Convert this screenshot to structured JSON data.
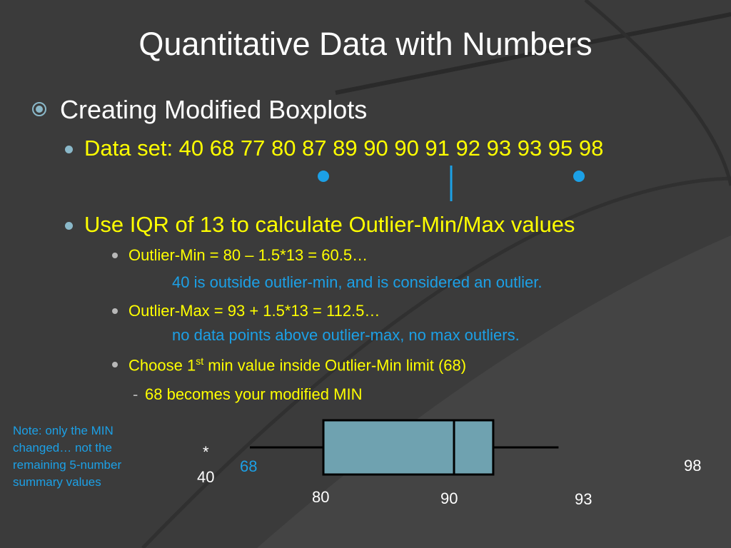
{
  "slide": {
    "title": "Quantitative Data with Numbers",
    "heading": "Creating Modified Boxplots",
    "dataset_line": "Data set: 40 68 77 80 87 89 90 90 91 92 93 93 95 98",
    "iqr_line": "Use IQR of 13 to calculate Outlier-Min/Max values",
    "outlier_min_line": "Outlier-Min = 80 – 1.5*13 = 60.5…",
    "outlier_min_note": "40 is outside outlier-min, and is considered an outlier.",
    "outlier_max_line": "Outlier-Max = 93 + 1.5*13 = 112.5…",
    "outlier_max_note": "no data points above outlier-max, no max outliers.",
    "choose_prefix": "Choose 1",
    "choose_sup": "st",
    "choose_suffix": " min value inside Outlier-Min limit (68)",
    "dash": "-",
    "modified_min_line": "68 becomes your modified MIN",
    "note": "Note: only the MIN changed… not the remaining 5-number summary values"
  },
  "colors": {
    "background": "#3b3b3b",
    "title_text": "#ffffff",
    "highlight_text": "#ffff00",
    "accent_blue": "#1ca0e6",
    "box_fill": "#6fa2b0"
  },
  "boxplot": {
    "outlier_symbol": "*",
    "outlier_value": "40",
    "whisker_min_label": "68",
    "q1_label": "80",
    "median_label": "90",
    "q3_label": "93",
    "max_label": "98",
    "values": {
      "outlier": 40,
      "min": 68,
      "q1": 80,
      "median": 90,
      "q3": 93,
      "max": 98
    }
  }
}
